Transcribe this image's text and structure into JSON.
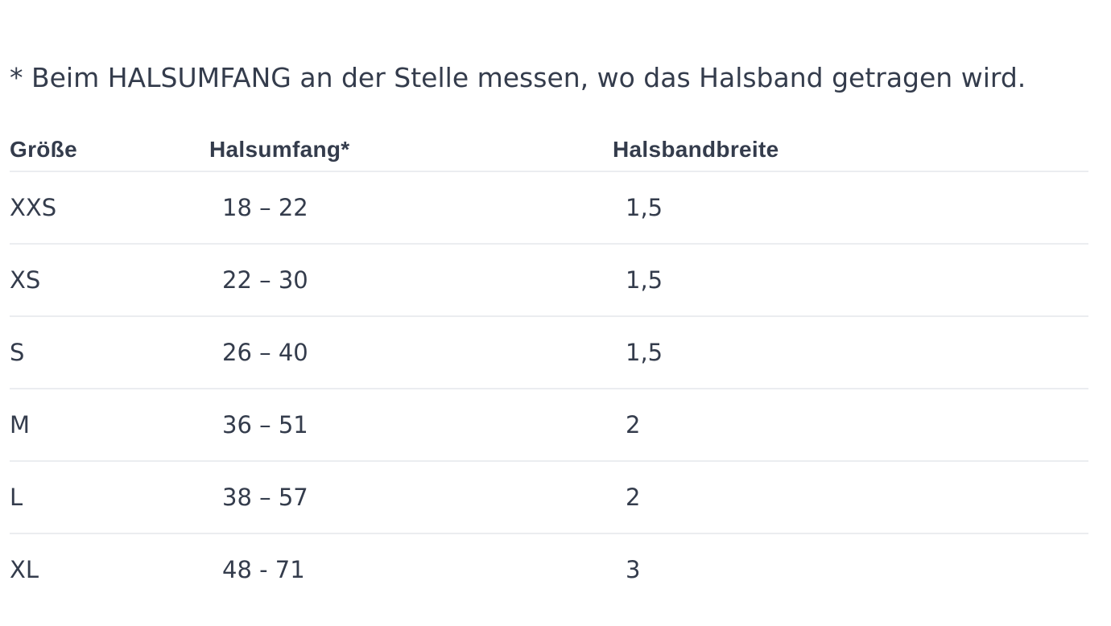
{
  "note": "* Beim HALSUMFANG an der Stelle messen, wo das Halsband getragen wird.",
  "table": {
    "headers": {
      "size": "Größe",
      "neck": "Halsumfang*",
      "width": "Halsbandbreite"
    },
    "rows": [
      {
        "size": "XXS",
        "neck": "18 – 22",
        "width": "1,5"
      },
      {
        "size": "XS",
        "neck": "22 – 30",
        "width": "1,5"
      },
      {
        "size": "S",
        "neck": "26 – 40",
        "width": "1,5"
      },
      {
        "size": "M",
        "neck": "36 – 51",
        "width": "2"
      },
      {
        "size": "L",
        "neck": "38 – 57",
        "width": "2"
      },
      {
        "size": "XL",
        "neck": "48 - 71",
        "width": "3"
      }
    ]
  },
  "colors": {
    "text": "#343c4c",
    "divider": "#ebedf0",
    "background": "#ffffff"
  }
}
